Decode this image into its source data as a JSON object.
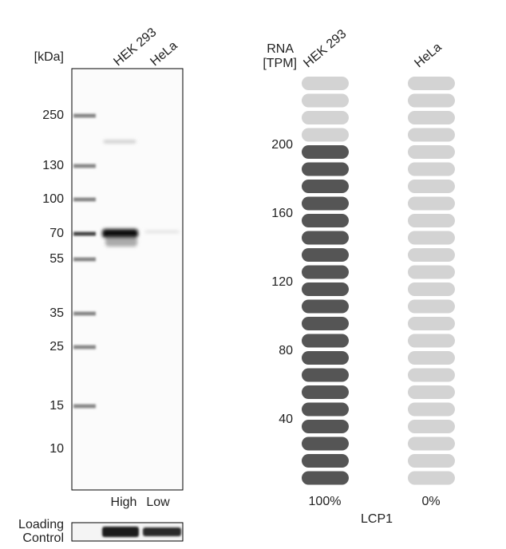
{
  "blot": {
    "unit_label": "[kDa]",
    "lanes": [
      "HEK 293",
      "HeLa"
    ],
    "markers": [
      250,
      130,
      100,
      70,
      55,
      35,
      25,
      15,
      10
    ],
    "levels": [
      "High",
      "Low"
    ],
    "loading_control": [
      "Loading",
      "Control"
    ]
  },
  "rna": {
    "axis_label": [
      "RNA",
      "[TPM]"
    ],
    "samples": [
      "HEK 293",
      "HeLa"
    ],
    "ticks": [
      200,
      160,
      120,
      80,
      40
    ],
    "percentages": [
      "100%",
      "0%"
    ],
    "gene": "LCP1"
  }
}
